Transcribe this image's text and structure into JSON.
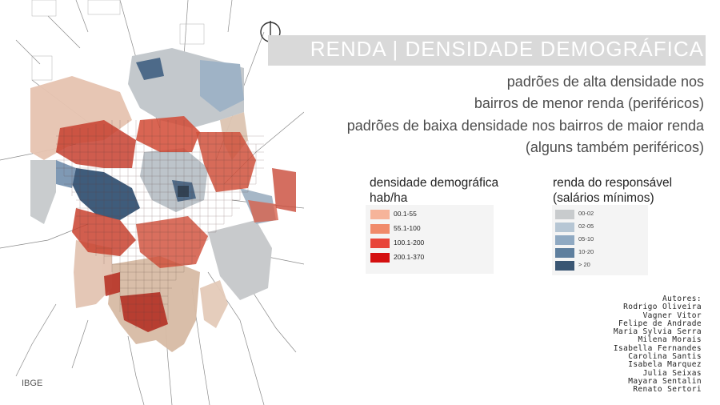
{
  "title": "RENDA | DENSIDADE DEMOGRÁFICA",
  "subtitle_lines": [
    "padrões de alta densidade nos",
    "bairros de menor renda (periféricos)",
    "padrões de baixa densidade nos bairros de maior renda",
    "(alguns também periféricos)"
  ],
  "legend_density": {
    "title_line1": "densidade demográfica",
    "title_line2": "hab/ha",
    "items": [
      {
        "label": "00.1-55",
        "color": "#f6b49a"
      },
      {
        "label": "55.1-100",
        "color": "#f08a6a"
      },
      {
        "label": "100.1-200",
        "color": "#e8453a"
      },
      {
        "label": "200.1-370",
        "color": "#d40f0f"
      }
    ]
  },
  "legend_income": {
    "title_line1": "renda do responsável",
    "title_line2": "(salários mínimos)",
    "items": [
      {
        "label": "00-02",
        "color": "#c8cbcd"
      },
      {
        "label": "02-05",
        "color": "#b6c6d4"
      },
      {
        "label": "05-10",
        "color": "#8fa9c2"
      },
      {
        "label": "10-20",
        "color": "#5e7f9e"
      },
      {
        "label": "> 20",
        "color": "#3a5673"
      }
    ]
  },
  "source": "IBGE",
  "authors_heading": "Autores:",
  "authors": [
    "Rodrigo Oliveira",
    "Vagner Vitor",
    "Felipe de Andrade",
    "Maria Sylvia Serra",
    "Milena Morais",
    "Isabella Fernandes",
    "Carolina Santis",
    "Isabela Marquez",
    "Julia Seixas",
    "Mayara Sentalin",
    "Renato Sertori"
  ],
  "map_colors": {
    "peach": "#e6c3b0",
    "tan": "#d8bba5",
    "gray": "#c3c8cc",
    "steel": "#8ea6bd",
    "navy": "#3f5c7b",
    "red": "#d24a35",
    "darkred": "#b0281c",
    "road": "#7d7d7d"
  }
}
